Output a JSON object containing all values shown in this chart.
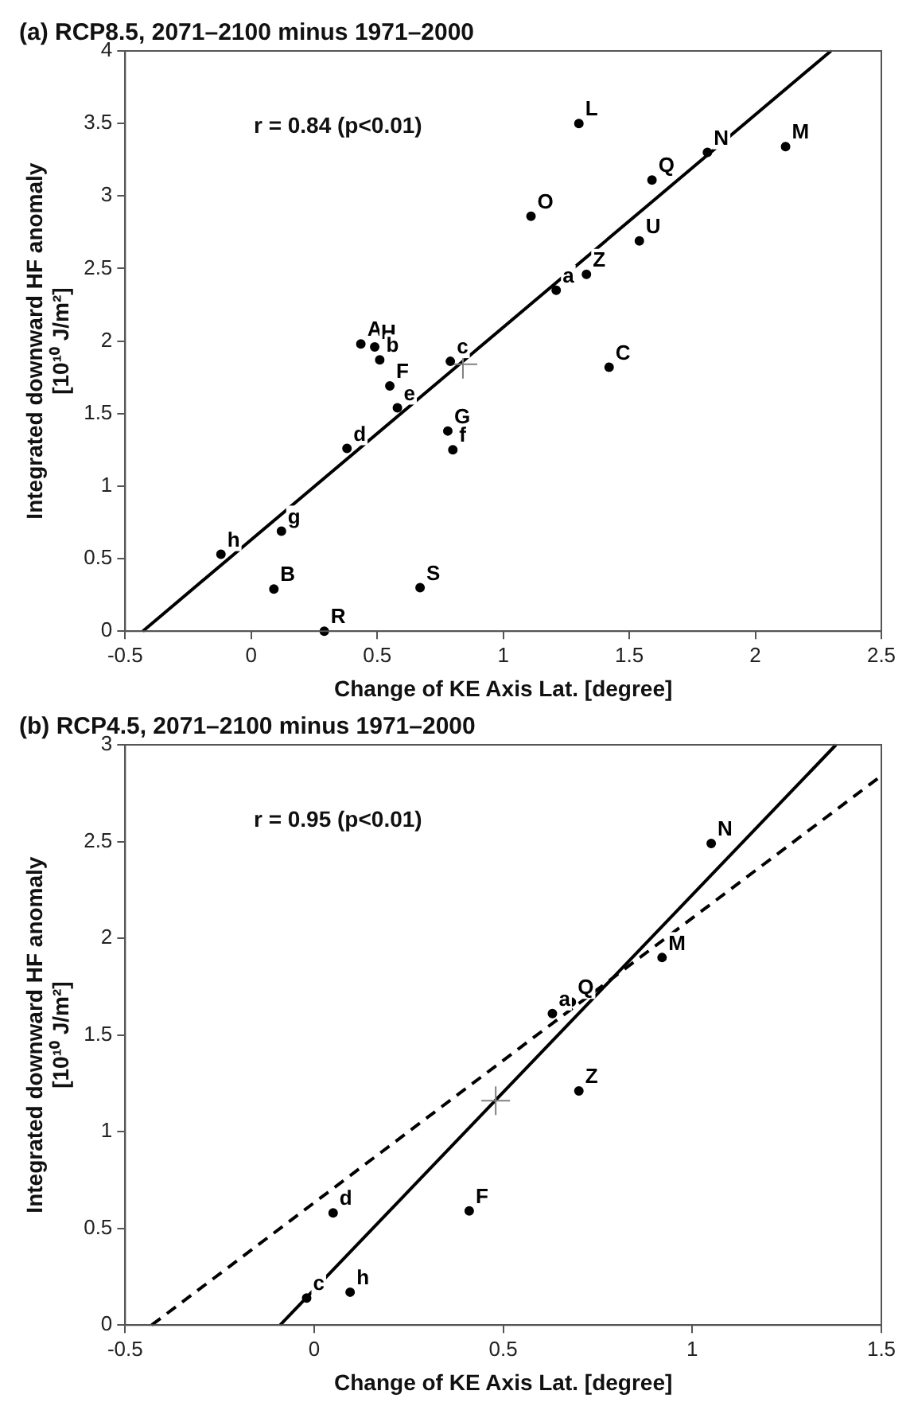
{
  "chart_data": [
    {
      "type": "scatter",
      "title": "(a) RCP8.5, 2071–2100 minus 1971–2000",
      "xlabel": "Change of KE Axis Lat. [degree]",
      "ylabel": "Integrated downward HF anomaly\n[10¹⁰ J/m²]",
      "annotations": [
        "r = 0.84 (p<0.01)"
      ],
      "xlim": [
        -0.5,
        2.5
      ],
      "xticks": [
        -0.5,
        0,
        0.5,
        1,
        1.5,
        2,
        2.5
      ],
      "ylim": [
        0,
        4
      ],
      "yticks": [
        0,
        0.5,
        1,
        1.5,
        2,
        2.5,
        3,
        3.5,
        4
      ],
      "grid": false,
      "legend": false,
      "series": [
        {
          "type": "scatter",
          "marker": "circle",
          "color": "#000000",
          "x": [
            0.435,
            0.49,
            0.51,
            0.79,
            0.55,
            0.58,
            0.38,
            0.78,
            0.8,
            1.42,
            0.12,
            -0.12,
            0.09,
            0.67,
            0.29,
            1.3,
            1.81,
            2.12,
            1.59,
            1.11,
            1.54,
            1.33,
            1.21
          ],
          "values": [
            1.98,
            1.96,
            1.87,
            1.86,
            1.69,
            1.54,
            1.26,
            1.38,
            1.25,
            1.82,
            0.69,
            0.53,
            0.29,
            0.3,
            0,
            3.5,
            3.3,
            3.34,
            3.11,
            2.86,
            2.69,
            2.46,
            2.35
          ],
          "value_labels": [
            "A",
            "H",
            "b",
            "c",
            "F",
            "e",
            "d",
            "G",
            "f",
            "C",
            "g",
            "h",
            "B",
            "S",
            "R",
            "L",
            "N",
            "M",
            "Q",
            "O",
            "U",
            "Z",
            "a"
          ]
        },
        {
          "type": "scatter",
          "marker": "cross",
          "color": "#808080",
          "x": [
            0.84
          ],
          "values": [
            1.84
          ]
        },
        {
          "type": "line",
          "marker": "none",
          "line_style": "solid",
          "color": "#000000",
          "x": [
            -0.43,
            2.3
          ],
          "values": [
            0,
            4
          ]
        }
      ]
    },
    {
      "type": "scatter",
      "title": "(b) RCP4.5, 2071–2100 minus 1971–2000",
      "xlabel": "Change of KE Axis Lat. [degree]",
      "ylabel": "Integrated downward HF anomaly\n[10¹⁰ J/m²]",
      "annotations": [
        "r = 0.95 (p<0.01)"
      ],
      "xlim": [
        -0.5,
        1.5
      ],
      "xticks": [
        -0.5,
        0,
        0.5,
        1,
        1.5
      ],
      "ylim": [
        0,
        3
      ],
      "yticks": [
        0,
        0.5,
        1,
        1.5,
        2,
        2.5,
        3
      ],
      "grid": false,
      "legend": false,
      "series": [
        {
          "type": "scatter",
          "marker": "circle",
          "color": "#000000",
          "x": [
            1.05,
            0.92,
            0.68,
            0.63,
            0.7,
            0.41,
            0.05,
            0.095,
            -0.02
          ],
          "values": [
            2.49,
            1.9,
            1.67,
            1.61,
            1.21,
            0.59,
            0.58,
            0.17,
            0.14
          ],
          "value_labels": [
            "N",
            "M",
            "Q",
            "a",
            "Z",
            "F",
            "d",
            "h",
            "c"
          ]
        },
        {
          "type": "scatter",
          "marker": "cross",
          "color": "#808080",
          "x": [
            0.48
          ],
          "values": [
            1.16
          ]
        },
        {
          "type": "line",
          "marker": "none",
          "line_style": "solid",
          "color": "#000000",
          "x": [
            -0.09,
            1.38
          ],
          "values": [
            0,
            3
          ]
        },
        {
          "type": "line",
          "marker": "none",
          "line_style": "dashed",
          "color": "#000000",
          "x": [
            -0.43,
            1.5
          ],
          "values": [
            0,
            2.84
          ]
        }
      ]
    }
  ]
}
